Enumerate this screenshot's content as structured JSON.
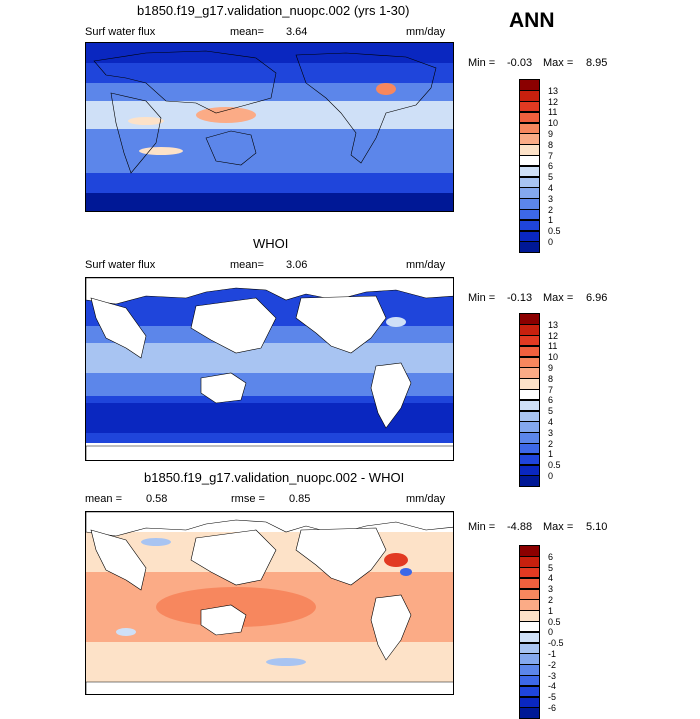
{
  "season": "ANN",
  "panels": [
    {
      "title": "b1850.f19_g17.validation_nuopc.002 (yrs 1-30)",
      "field": "Surf water flux",
      "stat_label": "mean=",
      "stat_value": "3.64",
      "units": "mm/day",
      "min_label": "Min =",
      "min_value": "-0.03",
      "max_label": "Max =",
      "max_value": "8.95",
      "colorbar_labels": [
        "13",
        "12",
        "11",
        "10",
        "9",
        "8",
        "7",
        "6",
        "5",
        "4",
        "3",
        "2",
        "1",
        "0.5",
        "0"
      ]
    },
    {
      "title": "WHOI",
      "field": "Surf water flux",
      "stat_label": "mean=",
      "stat_value": "3.06",
      "units": "mm/day",
      "min_label": "Min =",
      "min_value": "-0.13",
      "max_label": "Max =",
      "max_value": "6.96",
      "colorbar_labels": [
        "13",
        "12",
        "11",
        "10",
        "9",
        "8",
        "7",
        "6",
        "5",
        "4",
        "3",
        "2",
        "1",
        "0.5",
        "0"
      ]
    },
    {
      "title": "b1850.f19_g17.validation_nuopc.002 - WHOI",
      "field": "",
      "mean_label": "mean =",
      "mean_value": "0.58",
      "rmse_label": "rmse =",
      "rmse_value": "0.85",
      "units": "mm/day",
      "min_label": "Min =",
      "min_value": "-4.88",
      "max_label": "Max =",
      "max_value": "5.10",
      "colorbar_labels": [
        "6",
        "5",
        "4",
        "3",
        "2",
        "1",
        "0.5",
        "0",
        "-0.5",
        "-1",
        "-2",
        "-3",
        "-4",
        "-5",
        "-6"
      ]
    }
  ],
  "colors": {
    "abs_scale": [
      "#8b0000",
      "#c8200e",
      "#e23a22",
      "#f0603e",
      "#f7875e",
      "#fbab86",
      "#fde2c8",
      "#ffffff",
      "#cfe0f7",
      "#a8c4f2",
      "#84a8ee",
      "#5c86ea",
      "#3d68e8",
      "#1f45db",
      "#0a27c0",
      "#001896"
    ],
    "diff_scale": [
      "#8b0000",
      "#c8200e",
      "#e23a22",
      "#f0603e",
      "#f7875e",
      "#fbab86",
      "#fde2c8",
      "#ffffff",
      "#cfe0f7",
      "#a8c4f2",
      "#84a8ee",
      "#5c86ea",
      "#3d68e8",
      "#1f45db",
      "#0a27c0",
      "#001896"
    ]
  }
}
